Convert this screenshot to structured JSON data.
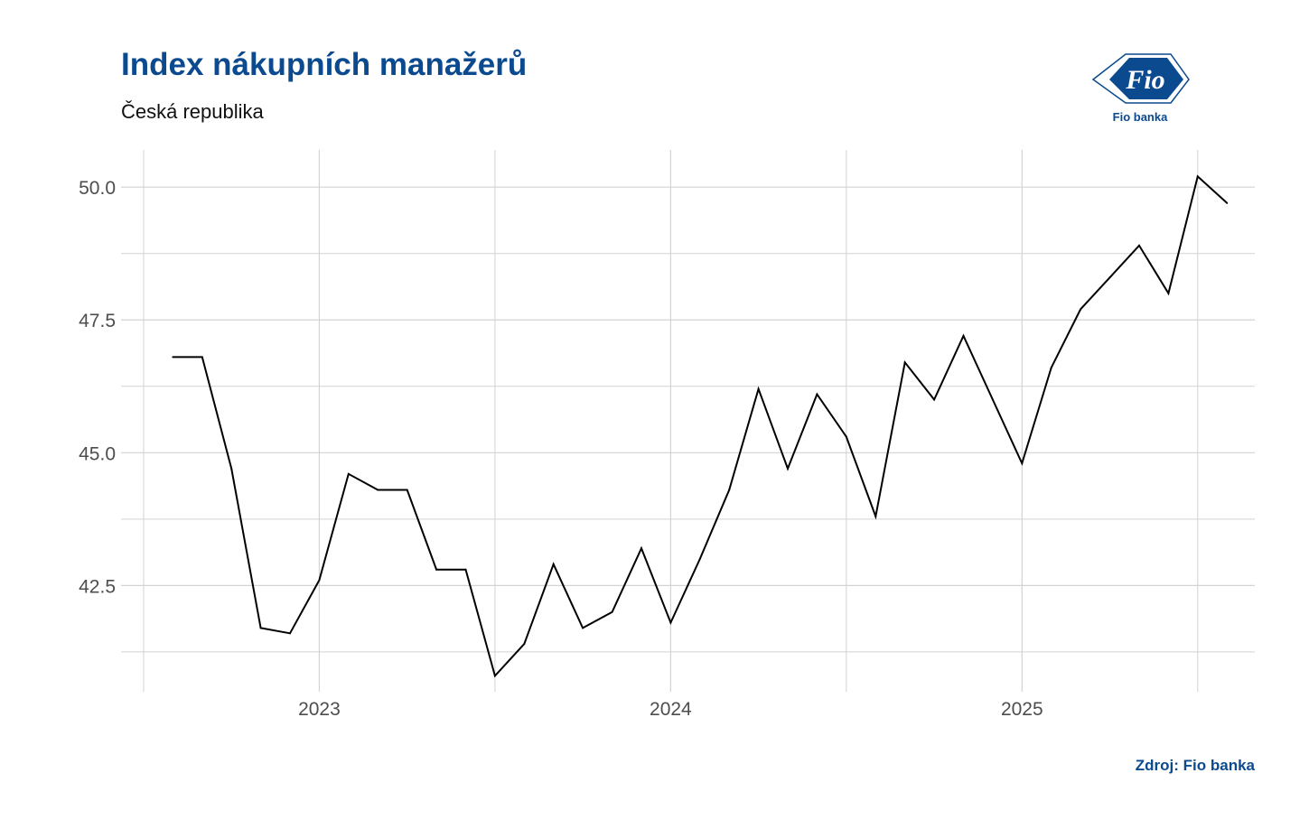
{
  "title": "Index nákupních manažerů",
  "subtitle": "Česká republika",
  "source": "Zdroj: Fio banka",
  "logo": {
    "wordmark": "Fio",
    "caption": "Fio banka",
    "color": "#0b4a8f"
  },
  "chart_data": {
    "type": "line",
    "title": "Index nákupních manažerů",
    "subtitle": "Česká republika",
    "xlabel": "",
    "ylabel": "",
    "x_tick_labels": [
      "2023",
      "2024",
      "2025"
    ],
    "y_tick_labels": [
      "42.5",
      "45.0",
      "47.5",
      "50.0"
    ],
    "y_ticks": [
      42.5,
      45.0,
      47.5,
      50.0
    ],
    "x_ticks": [
      "2023-01",
      "2024-01",
      "2025-01"
    ],
    "xlim": [
      "2022-06",
      "2025-09"
    ],
    "ylim": [
      40.5,
      50.7
    ],
    "grid": true,
    "series": [
      {
        "color": "#000000",
        "x": [
          "2022-08",
          "2022-09",
          "2022-10",
          "2022-11",
          "2022-12",
          "2023-01",
          "2023-02",
          "2023-03",
          "2023-04",
          "2023-05",
          "2023-06",
          "2023-07",
          "2023-08",
          "2023-09",
          "2023-10",
          "2023-11",
          "2023-12",
          "2024-01",
          "2024-02",
          "2024-03",
          "2024-04",
          "2024-05",
          "2024-06",
          "2024-07",
          "2024-08",
          "2024-09",
          "2024-10",
          "2024-11",
          "2024-12",
          "2025-01",
          "2025-02",
          "2025-03",
          "2025-04",
          "2025-05",
          "2025-06",
          "2025-07",
          "2025-08"
        ],
        "values": [
          46.8,
          46.8,
          44.7,
          41.7,
          41.6,
          42.6,
          44.6,
          44.3,
          44.3,
          42.8,
          42.8,
          40.8,
          41.4,
          42.9,
          41.7,
          42.0,
          43.2,
          41.8,
          43.0,
          44.3,
          46.2,
          44.7,
          46.1,
          45.3,
          43.8,
          46.7,
          46.0,
          47.2,
          46.0,
          44.8,
          46.6,
          47.7,
          48.3,
          48.9,
          48.0,
          50.2,
          49.7
        ]
      }
    ]
  }
}
